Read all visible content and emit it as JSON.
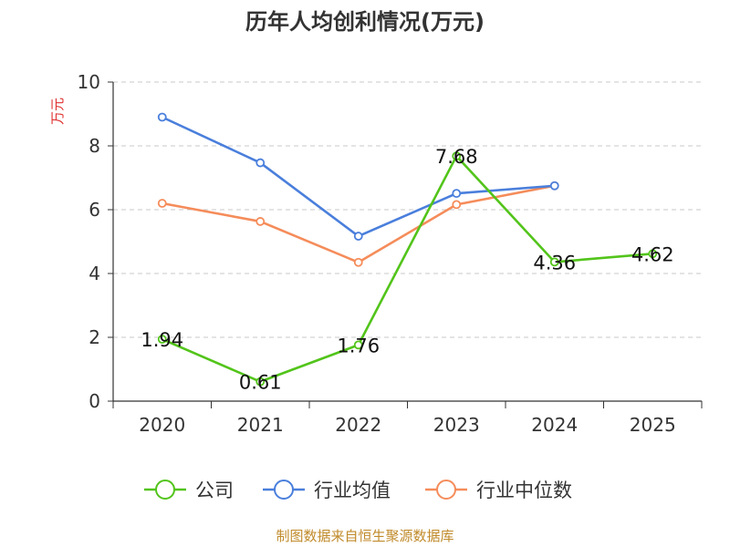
{
  "chart_data": {
    "type": "line",
    "title": "历年人均创利情况(万元)",
    "ylabel": "万元",
    "xlabel": "",
    "categories": [
      "2020",
      "2021",
      "2022",
      "2023",
      "2024",
      "2025"
    ],
    "ylim": [
      0,
      10
    ],
    "yticks": [
      "0",
      "2",
      "4",
      "6",
      "8",
      "10"
    ],
    "grid": true,
    "legend_position": "bottom",
    "series": [
      {
        "name": "公司",
        "color": "#52c41a",
        "values": [
          1.94,
          0.61,
          1.76,
          7.68,
          4.36,
          4.62
        ],
        "labels": [
          "1.94",
          "0.61",
          "1.76",
          "7.68",
          "4.36",
          "4.62"
        ]
      },
      {
        "name": "行业均值",
        "color": "#4a7fdc",
        "values": [
          8.9,
          7.47,
          5.17,
          6.51,
          6.75,
          null
        ]
      },
      {
        "name": "行业中位数",
        "color": "#f58c5a",
        "values": [
          6.2,
          5.63,
          4.35,
          6.16,
          6.75,
          null
        ]
      }
    ]
  },
  "footer": {
    "source": "制图数据来自恒生聚源数据库"
  }
}
